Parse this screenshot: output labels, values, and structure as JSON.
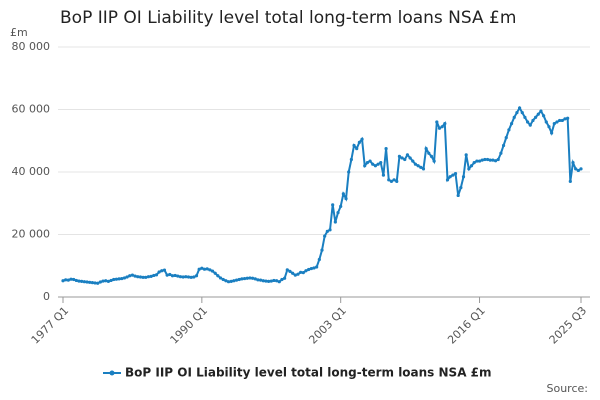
{
  "chart_data": {
    "type": "line",
    "title": "BoP IIP OI Liability level total long-term loans NSA £m",
    "y_label": "£m",
    "source": "Source:",
    "categories": [
      "1977 Q1",
      null,
      null,
      null,
      null,
      null,
      null,
      null,
      null,
      null,
      null,
      null,
      null,
      null,
      null,
      null,
      null,
      null,
      null,
      null,
      null,
      null,
      null,
      null,
      null,
      null,
      null,
      null,
      null,
      null,
      null,
      null,
      null,
      null,
      null,
      null,
      null,
      null,
      null,
      null,
      null,
      null,
      null,
      null,
      null,
      null,
      null,
      null,
      null,
      null,
      null,
      null,
      "1990 Q1",
      null,
      null,
      null,
      null,
      null,
      null,
      null,
      null,
      null,
      null,
      null,
      null,
      null,
      null,
      null,
      null,
      null,
      null,
      null,
      null,
      null,
      null,
      null,
      null,
      null,
      null,
      null,
      null,
      null,
      null,
      null,
      null,
      null,
      null,
      null,
      null,
      null,
      null,
      null,
      null,
      null,
      null,
      null,
      null,
      null,
      null,
      null,
      null,
      null,
      null,
      null,
      "2003 Q1",
      null,
      null,
      null,
      null,
      null,
      null,
      null,
      null,
      null,
      null,
      null,
      null,
      null,
      null,
      null,
      null,
      null,
      null,
      null,
      null,
      null,
      null,
      null,
      null,
      null,
      null,
      null,
      null,
      null,
      null,
      null,
      null,
      null,
      null,
      null,
      null,
      null,
      null,
      null,
      null,
      null,
      null,
      null,
      null,
      null,
      null,
      null,
      null,
      null,
      null,
      null,
      "2016 Q1",
      null,
      null,
      null,
      null,
      null,
      null,
      null,
      null,
      null,
      null,
      null,
      null,
      null,
      null,
      null,
      null,
      null,
      null,
      null,
      null,
      null,
      null,
      null,
      null,
      null,
      null,
      null,
      null,
      null,
      null,
      null,
      null,
      null,
      null,
      null,
      null,
      null,
      "2025 Q3"
    ],
    "series": [
      {
        "name": "BoP IIP OI Liability level total long-term loans NSA £m",
        "color": "#1a7fc1",
        "values": [
          5200,
          5500,
          5400,
          5700,
          5600,
          5300,
          5100,
          5000,
          4900,
          4800,
          4700,
          4600,
          4500,
          4400,
          4800,
          5100,
          5200,
          5000,
          5300,
          5600,
          5700,
          5800,
          5900,
          6100,
          6400,
          6800,
          7000,
          6700,
          6500,
          6400,
          6300,
          6300,
          6500,
          6600,
          6900,
          7100,
          8000,
          8400,
          8600,
          7000,
          7200,
          6800,
          6900,
          6700,
          6500,
          6400,
          6500,
          6400,
          6300,
          6400,
          6800,
          8900,
          9200,
          8900,
          9000,
          8700,
          8300,
          7600,
          6800,
          6100,
          5600,
          5200,
          4900,
          5000,
          5200,
          5400,
          5600,
          5800,
          5900,
          6000,
          6100,
          6000,
          5800,
          5500,
          5400,
          5200,
          5100,
          5000,
          5100,
          5300,
          5200,
          4900,
          5600,
          6000,
          8700,
          8200,
          7600,
          7000,
          7300,
          7900,
          7800,
          8400,
          8800,
          9100,
          9300,
          9600,
          12000,
          15000,
          19500,
          21000,
          21500,
          29500,
          24000,
          27000,
          29000,
          33000,
          31500,
          40000,
          44000,
          48500,
          47500,
          49500,
          50500,
          42000,
          43000,
          43500,
          42500,
          42000,
          42500,
          43000,
          39000,
          47500,
          37500,
          37000,
          37500,
          37000,
          45000,
          44500,
          44000,
          45500,
          44500,
          43500,
          42500,
          42000,
          41500,
          41000,
          47500,
          46000,
          45000,
          43500,
          56000,
          54000,
          54500,
          55500,
          37500,
          38500,
          39000,
          39500,
          32500,
          35000,
          38500,
          45500,
          41000,
          42000,
          43000,
          43500,
          43500,
          43800,
          44000,
          44000,
          43800,
          43800,
          43600,
          44000,
          46000,
          48500,
          51000,
          53500,
          55500,
          57500,
          59000,
          60500,
          59000,
          57500,
          56000,
          55000,
          56500,
          57500,
          58500,
          59500,
          58000,
          56000,
          54500,
          52500,
          55500,
          56000,
          56500,
          56500,
          57000,
          57200,
          37000,
          43000,
          41000,
          40500,
          41000
        ]
      }
    ],
    "ylim": [
      0,
      80000
    ],
    "yticks": [
      0,
      {
        "value": 20000,
        "label": "20 000"
      },
      {
        "value": 40000,
        "label": "40 000"
      },
      {
        "value": 60000,
        "label": "60 000"
      },
      {
        "value": 80000,
        "label": "80 000"
      }
    ],
    "grid": true
  }
}
